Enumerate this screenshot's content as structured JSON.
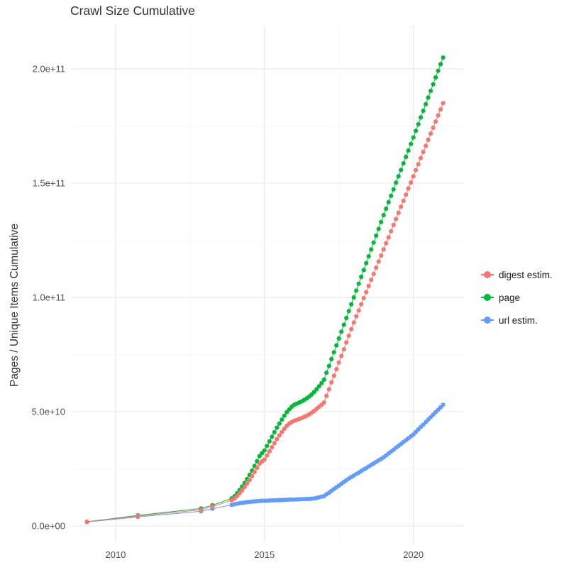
{
  "chart_data": {
    "type": "line",
    "title": "Crawl Size Cumulative",
    "xlabel": "",
    "ylabel": "Pages / Unique Items Cumulative",
    "values_unit": "billions (value x 1e9)",
    "xlim": [
      2008.5,
      2021.7
    ],
    "ylim": [
      -7.5,
      219
    ],
    "grid": true,
    "legend_position": "right",
    "x_ticks": [
      {
        "value": 2010,
        "label": "2010"
      },
      {
        "value": 2015,
        "label": "2015"
      },
      {
        "value": 2020,
        "label": "2020"
      }
    ],
    "y_ticks": [
      {
        "value": 0,
        "label": "0.0e+00"
      },
      {
        "value": 50,
        "label": "5.0e+10"
      },
      {
        "value": 100,
        "label": "1.0e+11"
      },
      {
        "value": 150,
        "label": "1.5e+11"
      },
      {
        "value": 200,
        "label": "2.0e+11"
      }
    ],
    "x_minor": [
      2012.5,
      2017.5
    ],
    "y_minor": [
      25,
      75,
      125,
      175
    ],
    "colors": {
      "grid_major": "#EBEBEB",
      "grid_minor": "#F5F5F5",
      "tick_text": "#4D4D4D",
      "title_text": "#333333"
    },
    "draw_order": [
      2,
      1,
      0
    ],
    "series": [
      {
        "name": "digest estim.",
        "color": "#F8766D",
        "points": [
          [
            2009.04,
            1.8
          ],
          [
            2010.75,
            4.3
          ],
          [
            2012.87,
            7.0
          ],
          [
            2013.25,
            8.4
          ],
          [
            2013.9,
            11.2
          ],
          [
            2014.0,
            12.0
          ],
          [
            2014.083,
            13.1
          ],
          [
            2014.167,
            14.3
          ],
          [
            2014.25,
            15.6
          ],
          [
            2014.333,
            17.0
          ],
          [
            2014.417,
            18.5
          ],
          [
            2014.5,
            20.1
          ],
          [
            2014.583,
            21.8
          ],
          [
            2014.667,
            23.6
          ],
          [
            2014.75,
            25.4
          ],
          [
            2014.833,
            27.2
          ],
          [
            2014.917,
            28.2
          ],
          [
            2015.0,
            29.0
          ],
          [
            2015.083,
            30.8
          ],
          [
            2015.167,
            32.6
          ],
          [
            2015.25,
            34.4
          ],
          [
            2015.333,
            36.2
          ],
          [
            2015.417,
            38.0
          ],
          [
            2015.5,
            39.6
          ],
          [
            2015.583,
            41.1
          ],
          [
            2015.667,
            42.5
          ],
          [
            2015.75,
            43.8
          ],
          [
            2015.833,
            44.8
          ],
          [
            2015.917,
            45.5
          ],
          [
            2016.0,
            46.0
          ],
          [
            2016.083,
            46.4
          ],
          [
            2016.167,
            46.8
          ],
          [
            2016.25,
            47.2
          ],
          [
            2016.333,
            47.7
          ],
          [
            2016.417,
            48.2
          ],
          [
            2016.5,
            48.8
          ],
          [
            2016.583,
            49.5
          ],
          [
            2016.667,
            50.3
          ],
          [
            2016.75,
            51.2
          ],
          [
            2016.833,
            52.1
          ],
          [
            2016.917,
            53.0
          ],
          [
            2017.0,
            54.0
          ],
          [
            2017.083,
            56.9
          ],
          [
            2017.167,
            59.8
          ],
          [
            2017.25,
            62.8
          ],
          [
            2017.333,
            65.7
          ],
          [
            2017.417,
            68.6
          ],
          [
            2017.5,
            71.5
          ],
          [
            2017.583,
            74.4
          ],
          [
            2017.667,
            77.3
          ],
          [
            2017.75,
            80.3
          ],
          [
            2017.833,
            83.2
          ],
          [
            2017.917,
            86.1
          ],
          [
            2018.0,
            89.0
          ],
          [
            2018.083,
            91.7
          ],
          [
            2018.167,
            94.3
          ],
          [
            2018.25,
            97.0
          ],
          [
            2018.333,
            99.7
          ],
          [
            2018.417,
            102.3
          ],
          [
            2018.5,
            105.0
          ],
          [
            2018.583,
            107.7
          ],
          [
            2018.667,
            110.3
          ],
          [
            2018.75,
            113.0
          ],
          [
            2018.833,
            115.7
          ],
          [
            2018.917,
            118.3
          ],
          [
            2019.0,
            121.0
          ],
          [
            2019.083,
            123.7
          ],
          [
            2019.167,
            126.3
          ],
          [
            2019.25,
            129.0
          ],
          [
            2019.333,
            131.7
          ],
          [
            2019.417,
            134.3
          ],
          [
            2019.5,
            137.0
          ],
          [
            2019.583,
            139.7
          ],
          [
            2019.667,
            142.3
          ],
          [
            2019.75,
            145.0
          ],
          [
            2019.833,
            147.7
          ],
          [
            2019.917,
            150.3
          ],
          [
            2020.0,
            153.0
          ],
          [
            2020.083,
            155.7
          ],
          [
            2020.167,
            158.3
          ],
          [
            2020.25,
            161.0
          ],
          [
            2020.333,
            163.7
          ],
          [
            2020.417,
            166.3
          ],
          [
            2020.5,
            169.0
          ],
          [
            2020.583,
            171.7
          ],
          [
            2020.667,
            174.3
          ],
          [
            2020.75,
            177.0
          ],
          [
            2020.833,
            179.7
          ],
          [
            2020.917,
            182.3
          ],
          [
            2021.0,
            185.0
          ]
        ]
      },
      {
        "name": "page",
        "color": "#00BA38",
        "points": [
          [
            2009.04,
            1.8
          ],
          [
            2010.75,
            4.6
          ],
          [
            2012.87,
            7.6
          ],
          [
            2013.25,
            9.0
          ],
          [
            2013.9,
            12.0
          ],
          [
            2014.0,
            13.0
          ],
          [
            2014.083,
            14.3
          ],
          [
            2014.167,
            15.7
          ],
          [
            2014.25,
            17.2
          ],
          [
            2014.333,
            18.8
          ],
          [
            2014.417,
            20.5
          ],
          [
            2014.5,
            22.3
          ],
          [
            2014.583,
            24.2
          ],
          [
            2014.667,
            26.2
          ],
          [
            2014.75,
            28.3
          ],
          [
            2014.833,
            30.5
          ],
          [
            2014.917,
            31.8
          ],
          [
            2015.0,
            33.0
          ],
          [
            2015.083,
            35.0
          ],
          [
            2015.167,
            37.0
          ],
          [
            2015.25,
            39.0
          ],
          [
            2015.333,
            41.0
          ],
          [
            2015.417,
            43.0
          ],
          [
            2015.5,
            44.8
          ],
          [
            2015.583,
            46.5
          ],
          [
            2015.667,
            48.2
          ],
          [
            2015.75,
            49.8
          ],
          [
            2015.833,
            51.0
          ],
          [
            2015.917,
            52.2
          ],
          [
            2016.0,
            53.0
          ],
          [
            2016.083,
            53.5
          ],
          [
            2016.167,
            54.0
          ],
          [
            2016.25,
            54.5
          ],
          [
            2016.333,
            55.1
          ],
          [
            2016.417,
            55.8
          ],
          [
            2016.5,
            56.6
          ],
          [
            2016.583,
            57.5
          ],
          [
            2016.667,
            58.6
          ],
          [
            2016.75,
            59.8
          ],
          [
            2016.833,
            61.1
          ],
          [
            2016.917,
            62.5
          ],
          [
            2017.0,
            64.0
          ],
          [
            2017.083,
            67.0
          ],
          [
            2017.167,
            70.0
          ],
          [
            2017.25,
            73.0
          ],
          [
            2017.333,
            76.0
          ],
          [
            2017.417,
            79.0
          ],
          [
            2017.5,
            82.0
          ],
          [
            2017.583,
            85.0
          ],
          [
            2017.667,
            88.0
          ],
          [
            2017.75,
            91.0
          ],
          [
            2017.833,
            94.0
          ],
          [
            2017.917,
            97.0
          ],
          [
            2018.0,
            100.0
          ],
          [
            2018.083,
            103.0
          ],
          [
            2018.167,
            106.0
          ],
          [
            2018.25,
            109.0
          ],
          [
            2018.333,
            112.0
          ],
          [
            2018.417,
            115.0
          ],
          [
            2018.5,
            118.0
          ],
          [
            2018.583,
            121.0
          ],
          [
            2018.667,
            124.0
          ],
          [
            2018.75,
            127.0
          ],
          [
            2018.833,
            130.0
          ],
          [
            2018.917,
            133.0
          ],
          [
            2019.0,
            136.0
          ],
          [
            2019.083,
            138.8
          ],
          [
            2019.167,
            141.7
          ],
          [
            2019.25,
            144.5
          ],
          [
            2019.333,
            147.3
          ],
          [
            2019.417,
            150.2
          ],
          [
            2019.5,
            153.0
          ],
          [
            2019.583,
            155.8
          ],
          [
            2019.667,
            158.7
          ],
          [
            2019.75,
            161.5
          ],
          [
            2019.833,
            164.3
          ],
          [
            2019.917,
            167.2
          ],
          [
            2020.0,
            170.0
          ],
          [
            2020.083,
            172.9
          ],
          [
            2020.167,
            175.8
          ],
          [
            2020.25,
            178.8
          ],
          [
            2020.333,
            181.7
          ],
          [
            2020.417,
            184.6
          ],
          [
            2020.5,
            187.5
          ],
          [
            2020.583,
            190.4
          ],
          [
            2020.667,
            193.3
          ],
          [
            2020.75,
            196.3
          ],
          [
            2020.833,
            199.2
          ],
          [
            2020.917,
            202.1
          ],
          [
            2021.0,
            205.0
          ]
        ]
      },
      {
        "name": "url estim.",
        "color": "#619CFF",
        "points": [
          [
            2009.04,
            1.7
          ],
          [
            2010.75,
            3.9
          ],
          [
            2012.87,
            6.4
          ],
          [
            2013.25,
            7.5
          ],
          [
            2013.9,
            9.2
          ],
          [
            2014.0,
            9.5
          ],
          [
            2014.083,
            9.7
          ],
          [
            2014.167,
            9.9
          ],
          [
            2014.25,
            10.1
          ],
          [
            2014.333,
            10.2
          ],
          [
            2014.417,
            10.4
          ],
          [
            2014.5,
            10.5
          ],
          [
            2014.583,
            10.6
          ],
          [
            2014.667,
            10.7
          ],
          [
            2014.75,
            10.8
          ],
          [
            2014.833,
            10.9
          ],
          [
            2014.917,
            11.0
          ],
          [
            2015.0,
            11.0
          ],
          [
            2015.083,
            11.0
          ],
          [
            2015.167,
            11.1
          ],
          [
            2015.25,
            11.1
          ],
          [
            2015.333,
            11.2
          ],
          [
            2015.417,
            11.2
          ],
          [
            2015.5,
            11.3
          ],
          [
            2015.583,
            11.3
          ],
          [
            2015.667,
            11.4
          ],
          [
            2015.75,
            11.4
          ],
          [
            2015.833,
            11.5
          ],
          [
            2015.917,
            11.5
          ],
          [
            2016.0,
            11.5
          ],
          [
            2016.083,
            11.6
          ],
          [
            2016.167,
            11.6
          ],
          [
            2016.25,
            11.7
          ],
          [
            2016.333,
            11.7
          ],
          [
            2016.417,
            11.8
          ],
          [
            2016.5,
            11.8
          ],
          [
            2016.583,
            11.9
          ],
          [
            2016.667,
            12.0
          ],
          [
            2016.75,
            12.2
          ],
          [
            2016.833,
            12.5
          ],
          [
            2016.917,
            12.8
          ],
          [
            2017.0,
            13.0
          ],
          [
            2017.083,
            13.8
          ],
          [
            2017.167,
            14.5
          ],
          [
            2017.25,
            15.3
          ],
          [
            2017.333,
            16.1
          ],
          [
            2017.417,
            16.9
          ],
          [
            2017.5,
            17.6
          ],
          [
            2017.583,
            18.4
          ],
          [
            2017.667,
            19.2
          ],
          [
            2017.75,
            20.0
          ],
          [
            2017.833,
            20.7
          ],
          [
            2017.917,
            21.4
          ],
          [
            2018.0,
            22.0
          ],
          [
            2018.083,
            22.7
          ],
          [
            2018.167,
            23.3
          ],
          [
            2018.25,
            24.0
          ],
          [
            2018.333,
            24.7
          ],
          [
            2018.417,
            25.3
          ],
          [
            2018.5,
            26.0
          ],
          [
            2018.583,
            26.7
          ],
          [
            2018.667,
            27.3
          ],
          [
            2018.75,
            28.0
          ],
          [
            2018.833,
            28.7
          ],
          [
            2018.917,
            29.3
          ],
          [
            2019.0,
            30.0
          ],
          [
            2019.083,
            30.8
          ],
          [
            2019.167,
            31.7
          ],
          [
            2019.25,
            32.5
          ],
          [
            2019.333,
            33.3
          ],
          [
            2019.417,
            34.2
          ],
          [
            2019.5,
            35.0
          ],
          [
            2019.583,
            35.8
          ],
          [
            2019.667,
            36.7
          ],
          [
            2019.75,
            37.5
          ],
          [
            2019.833,
            38.3
          ],
          [
            2019.917,
            39.2
          ],
          [
            2020.0,
            40.0
          ],
          [
            2020.083,
            41.1
          ],
          [
            2020.167,
            42.2
          ],
          [
            2020.25,
            43.3
          ],
          [
            2020.333,
            44.3
          ],
          [
            2020.417,
            45.4
          ],
          [
            2020.5,
            46.5
          ],
          [
            2020.583,
            47.6
          ],
          [
            2020.667,
            48.7
          ],
          [
            2020.75,
            49.8
          ],
          [
            2020.833,
            50.8
          ],
          [
            2020.917,
            51.9
          ],
          [
            2021.0,
            53.0
          ]
        ]
      }
    ]
  }
}
